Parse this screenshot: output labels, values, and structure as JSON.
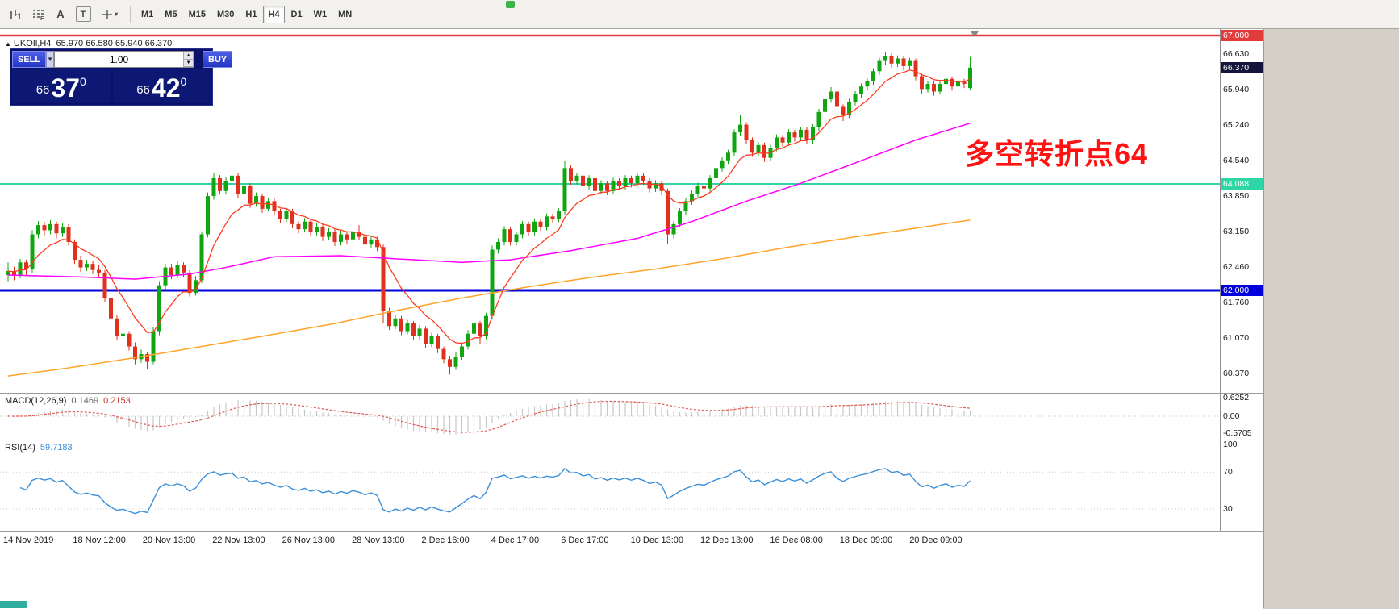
{
  "toolbar": {
    "tool_a": "A",
    "tool_t": "T",
    "timeframes": [
      {
        "label": "M1",
        "active": false
      },
      {
        "label": "M5",
        "active": false
      },
      {
        "label": "M15",
        "active": false
      },
      {
        "label": "M30",
        "active": false
      },
      {
        "label": "H1",
        "active": false
      },
      {
        "label": "H4",
        "active": true
      },
      {
        "label": "D1",
        "active": false
      },
      {
        "label": "W1",
        "active": false
      },
      {
        "label": "MN",
        "active": false
      }
    ]
  },
  "chart": {
    "marker": "▲",
    "symbol": "UKOIl,H4",
    "ohlc": "65.970 66.580 65.940 66.370"
  },
  "annotation": {
    "text": "多空转折点64",
    "color": "#ff1212"
  },
  "order_panel": {
    "sell_label": "SELL",
    "buy_label": "BUY",
    "volume": "1.00",
    "sell_price": {
      "prefix": "66",
      "main": "37",
      "sup": "0"
    },
    "buy_price": {
      "prefix": "66",
      "main": "42",
      "sup": "0"
    }
  },
  "chart_data": {
    "type": "candlestick",
    "symbol": "UKOIl",
    "timeframe": "H4",
    "colors": {
      "up": "#11a611",
      "down": "#e0301e",
      "ma_fast": "#ff3b1f",
      "ma_mid": "#ff00ff",
      "ma_slow": "#ffa428",
      "macd_hist": "#c8c8c8",
      "macd_signal": "#e05a50",
      "rsi": "#3a8fd9"
    },
    "hlines": [
      {
        "price": 67.0,
        "color": "#e23b3b",
        "width": 2.5
      },
      {
        "price": 64.088,
        "color": "#2fd6a5",
        "width": 2
      },
      {
        "price": 62.0,
        "color": "#0000dd",
        "width": 3
      }
    ],
    "ma_fast": {
      "period": 9
    },
    "ma_mid_anchors": [
      [
        0,
        62.3
      ],
      [
        13,
        62.26
      ],
      [
        21,
        62.22
      ],
      [
        30,
        62.32
      ],
      [
        36,
        62.45
      ],
      [
        44,
        62.66
      ],
      [
        55,
        62.68
      ],
      [
        64,
        62.62
      ],
      [
        75,
        62.55
      ],
      [
        83,
        62.6
      ],
      [
        93,
        62.78
      ],
      [
        104,
        63.02
      ],
      [
        113,
        63.35
      ],
      [
        122,
        63.75
      ],
      [
        131,
        64.1
      ],
      [
        140,
        64.5
      ],
      [
        150,
        64.95
      ],
      [
        159,
        65.28
      ]
    ],
    "ma_slow_anchors": [
      [
        0,
        60.32
      ],
      [
        10,
        60.48
      ],
      [
        21,
        60.68
      ],
      [
        32,
        60.9
      ],
      [
        43,
        61.12
      ],
      [
        54,
        61.35
      ],
      [
        64,
        61.6
      ],
      [
        75,
        61.85
      ],
      [
        85,
        62.05
      ],
      [
        96,
        62.25
      ],
      [
        107,
        62.42
      ],
      [
        118,
        62.62
      ],
      [
        129,
        62.85
      ],
      [
        140,
        63.05
      ],
      [
        150,
        63.22
      ],
      [
        159,
        63.38
      ]
    ],
    "candles": [
      [
        62.3,
        62.55,
        62.18,
        62.38
      ],
      [
        62.38,
        62.46,
        62.2,
        62.3
      ],
      [
        62.3,
        62.62,
        62.24,
        62.55
      ],
      [
        62.55,
        62.6,
        62.3,
        62.42
      ],
      [
        62.42,
        63.18,
        62.35,
        63.1
      ],
      [
        63.1,
        63.36,
        63.02,
        63.28
      ],
      [
        63.28,
        63.34,
        63.08,
        63.18
      ],
      [
        63.18,
        63.38,
        63.1,
        63.3
      ],
      [
        63.3,
        63.35,
        63.02,
        63.12
      ],
      [
        63.12,
        63.32,
        63.05,
        63.25
      ],
      [
        63.25,
        63.3,
        62.88,
        62.95
      ],
      [
        62.95,
        63.0,
        62.52,
        62.6
      ],
      [
        62.6,
        62.68,
        62.36,
        62.45
      ],
      [
        62.45,
        62.6,
        62.38,
        62.52
      ],
      [
        62.52,
        62.58,
        62.32,
        62.4
      ],
      [
        62.4,
        62.5,
        62.26,
        62.35
      ],
      [
        62.35,
        62.4,
        61.78,
        61.85
      ],
      [
        61.85,
        61.92,
        61.36,
        61.45
      ],
      [
        61.45,
        61.52,
        61.02,
        61.1
      ],
      [
        61.1,
        61.26,
        61.02,
        61.15
      ],
      [
        61.15,
        61.2,
        60.82,
        60.9
      ],
      [
        60.9,
        60.98,
        60.55,
        60.65
      ],
      [
        60.65,
        60.84,
        60.58,
        60.75
      ],
      [
        60.75,
        60.8,
        60.45,
        60.6
      ],
      [
        60.6,
        61.28,
        60.55,
        61.2
      ],
      [
        61.2,
        62.18,
        61.12,
        62.1
      ],
      [
        62.1,
        62.52,
        62.02,
        62.45
      ],
      [
        62.45,
        62.52,
        62.22,
        62.3
      ],
      [
        62.3,
        62.58,
        62.24,
        62.5
      ],
      [
        62.5,
        62.55,
        62.26,
        62.35
      ],
      [
        62.35,
        62.4,
        61.88,
        61.95
      ],
      [
        61.95,
        62.28,
        61.9,
        62.2
      ],
      [
        62.2,
        63.16,
        62.14,
        63.1
      ],
      [
        63.1,
        63.92,
        63.04,
        63.85
      ],
      [
        63.85,
        64.3,
        63.78,
        64.2
      ],
      [
        64.2,
        64.26,
        63.88,
        63.95
      ],
      [
        63.95,
        64.22,
        63.88,
        64.15
      ],
      [
        64.15,
        64.35,
        64.06,
        64.25
      ],
      [
        64.25,
        64.3,
        63.82,
        63.9
      ],
      [
        63.9,
        64.12,
        63.84,
        64.05
      ],
      [
        64.05,
        64.1,
        63.62,
        63.7
      ],
      [
        63.7,
        63.92,
        63.64,
        63.85
      ],
      [
        63.85,
        63.9,
        63.52,
        63.6
      ],
      [
        63.6,
        63.82,
        63.55,
        63.75
      ],
      [
        63.75,
        63.8,
        63.47,
        63.55
      ],
      [
        63.55,
        63.6,
        63.32,
        63.4
      ],
      [
        63.4,
        63.62,
        63.34,
        63.55
      ],
      [
        63.55,
        63.6,
        63.22,
        63.3
      ],
      [
        63.3,
        63.36,
        63.12,
        63.2
      ],
      [
        63.2,
        63.42,
        63.14,
        63.35
      ],
      [
        63.35,
        63.4,
        63.07,
        63.15
      ],
      [
        63.15,
        63.32,
        63.08,
        63.25
      ],
      [
        63.25,
        63.3,
        62.97,
        63.05
      ],
      [
        63.05,
        63.22,
        62.98,
        63.15
      ],
      [
        63.15,
        63.2,
        62.87,
        62.95
      ],
      [
        62.95,
        63.17,
        62.88,
        63.1
      ],
      [
        63.1,
        63.15,
        62.92,
        63.0
      ],
      [
        63.0,
        63.22,
        62.94,
        63.15
      ],
      [
        63.15,
        63.28,
        62.98,
        63.05
      ],
      [
        63.05,
        63.1,
        62.82,
        62.9
      ],
      [
        62.9,
        63.08,
        62.84,
        63.0
      ],
      [
        63.0,
        63.05,
        62.77,
        62.85
      ],
      [
        62.85,
        62.9,
        61.35,
        61.6
      ],
      [
        61.6,
        61.66,
        61.22,
        61.3
      ],
      [
        61.3,
        61.52,
        61.24,
        61.45
      ],
      [
        61.45,
        61.5,
        61.12,
        61.2
      ],
      [
        61.2,
        61.42,
        61.14,
        61.35
      ],
      [
        61.35,
        61.4,
        61.02,
        61.1
      ],
      [
        61.1,
        61.32,
        61.04,
        61.25
      ],
      [
        61.25,
        61.3,
        60.87,
        60.95
      ],
      [
        60.95,
        61.17,
        60.89,
        61.1
      ],
      [
        61.1,
        61.15,
        60.77,
        60.85
      ],
      [
        60.85,
        60.9,
        60.57,
        60.65
      ],
      [
        60.65,
        60.72,
        60.35,
        60.5
      ],
      [
        60.5,
        60.78,
        60.44,
        60.7
      ],
      [
        60.7,
        60.98,
        60.64,
        60.9
      ],
      [
        60.9,
        61.22,
        60.84,
        61.15
      ],
      [
        61.15,
        61.42,
        61.08,
        61.35
      ],
      [
        61.35,
        61.4,
        60.95,
        61.1
      ],
      [
        61.1,
        61.56,
        61.04,
        61.5
      ],
      [
        61.5,
        62.88,
        61.44,
        62.8
      ],
      [
        62.8,
        63.02,
        62.72,
        62.95
      ],
      [
        62.95,
        63.26,
        62.88,
        63.2
      ],
      [
        63.2,
        63.25,
        62.88,
        62.95
      ],
      [
        62.95,
        63.16,
        62.88,
        63.1
      ],
      [
        63.1,
        63.36,
        63.02,
        63.3
      ],
      [
        63.3,
        63.35,
        63.07,
        63.15
      ],
      [
        63.15,
        63.41,
        63.08,
        63.35
      ],
      [
        63.35,
        63.4,
        63.17,
        63.25
      ],
      [
        63.25,
        63.51,
        63.18,
        63.45
      ],
      [
        63.45,
        63.5,
        63.32,
        63.4
      ],
      [
        63.4,
        63.61,
        63.34,
        63.55
      ],
      [
        63.55,
        64.55,
        63.48,
        64.4
      ],
      [
        64.4,
        64.45,
        64.07,
        64.15
      ],
      [
        64.15,
        64.31,
        64.08,
        64.25
      ],
      [
        64.25,
        64.3,
        63.97,
        64.05
      ],
      [
        64.05,
        64.26,
        63.98,
        64.2
      ],
      [
        64.2,
        64.25,
        63.87,
        63.95
      ],
      [
        63.95,
        64.16,
        63.88,
        64.1
      ],
      [
        64.1,
        64.15,
        63.87,
        63.95
      ],
      [
        63.95,
        64.21,
        63.88,
        64.15
      ],
      [
        64.15,
        64.2,
        63.97,
        64.05
      ],
      [
        64.05,
        64.26,
        63.98,
        64.2
      ],
      [
        64.2,
        64.25,
        64.02,
        64.1
      ],
      [
        64.1,
        64.31,
        64.03,
        64.25
      ],
      [
        64.25,
        64.3,
        64.07,
        64.15
      ],
      [
        64.15,
        64.2,
        63.92,
        64.0
      ],
      [
        64.0,
        64.16,
        63.93,
        64.1
      ],
      [
        64.1,
        64.15,
        63.87,
        63.95
      ],
      [
        63.95,
        64.0,
        62.92,
        63.1
      ],
      [
        63.1,
        63.36,
        63.02,
        63.3
      ],
      [
        63.3,
        63.61,
        63.24,
        63.55
      ],
      [
        63.55,
        63.81,
        63.48,
        63.75
      ],
      [
        63.75,
        63.96,
        63.68,
        63.9
      ],
      [
        63.9,
        64.11,
        63.83,
        64.05
      ],
      [
        64.05,
        64.1,
        63.92,
        64.0
      ],
      [
        64.0,
        64.26,
        63.94,
        64.2
      ],
      [
        64.2,
        64.46,
        64.13,
        64.4
      ],
      [
        64.4,
        64.61,
        64.33,
        64.55
      ],
      [
        64.55,
        64.76,
        64.48,
        64.7
      ],
      [
        64.7,
        65.16,
        64.63,
        65.1
      ],
      [
        65.1,
        65.45,
        65.03,
        65.25
      ],
      [
        65.25,
        65.3,
        64.87,
        64.95
      ],
      [
        64.95,
        65.0,
        64.62,
        64.7
      ],
      [
        64.7,
        64.91,
        64.63,
        64.85
      ],
      [
        64.85,
        64.9,
        64.52,
        64.6
      ],
      [
        64.6,
        64.86,
        64.53,
        64.8
      ],
      [
        64.8,
        65.06,
        64.73,
        65.0
      ],
      [
        65.0,
        65.05,
        64.82,
        64.9
      ],
      [
        64.9,
        65.16,
        64.83,
        65.1
      ],
      [
        65.1,
        65.15,
        64.92,
        65.0
      ],
      [
        65.0,
        65.21,
        64.93,
        65.15
      ],
      [
        65.15,
        65.2,
        64.87,
        64.95
      ],
      [
        64.95,
        65.26,
        64.88,
        65.2
      ],
      [
        65.2,
        65.56,
        65.13,
        65.5
      ],
      [
        65.5,
        65.81,
        65.43,
        65.75
      ],
      [
        65.75,
        65.99,
        65.68,
        65.9
      ],
      [
        65.9,
        65.95,
        65.52,
        65.6
      ],
      [
        65.6,
        65.65,
        65.32,
        65.45
      ],
      [
        65.45,
        65.76,
        65.38,
        65.7
      ],
      [
        65.7,
        65.91,
        65.63,
        65.85
      ],
      [
        65.85,
        66.06,
        65.78,
        66.0
      ],
      [
        66.0,
        66.16,
        65.93,
        66.1
      ],
      [
        66.1,
        66.36,
        66.03,
        66.3
      ],
      [
        66.3,
        66.56,
        66.23,
        66.5
      ],
      [
        66.5,
        66.68,
        66.43,
        66.6
      ],
      [
        66.6,
        66.65,
        66.37,
        66.45
      ],
      [
        66.45,
        66.61,
        66.38,
        66.55
      ],
      [
        66.55,
        66.6,
        66.32,
        66.4
      ],
      [
        66.4,
        66.56,
        66.33,
        66.5
      ],
      [
        66.5,
        66.55,
        66.12,
        66.2
      ],
      [
        66.2,
        66.25,
        65.85,
        65.95
      ],
      [
        65.95,
        66.11,
        65.88,
        66.05
      ],
      [
        66.05,
        66.1,
        65.82,
        65.9
      ],
      [
        65.9,
        66.11,
        65.84,
        66.05
      ],
      [
        66.05,
        66.21,
        65.98,
        66.15
      ],
      [
        66.15,
        66.2,
        65.92,
        66.0
      ],
      [
        66.0,
        66.16,
        65.93,
        66.1
      ],
      [
        66.1,
        66.15,
        65.97,
        66.05
      ],
      [
        65.97,
        66.58,
        65.94,
        66.37
      ]
    ],
    "macd": {
      "label": "MACD(12,26,9)",
      "value_main": "0.1469",
      "value_signal": "0.2153",
      "axis_ticks": [
        {
          "label": "0.6252",
          "v": 0.6252
        },
        {
          "label": "0.00",
          "v": 0
        },
        {
          "label": "-0.5705",
          "v": -0.5705
        }
      ]
    },
    "rsi": {
      "label": "RSI(14)",
      "value": "59.7183",
      "levels": [
        70,
        30
      ],
      "axis_ticks": [
        {
          "label": "100",
          "v": 100
        },
        {
          "label": "70",
          "v": 70
        },
        {
          "label": "30",
          "v": 30
        }
      ]
    },
    "price_axis_ticks": [
      {
        "label": "66.630",
        "price": 66.63
      },
      {
        "label": "65.940",
        "price": 65.94
      },
      {
        "label": "65.240",
        "price": 65.24
      },
      {
        "label": "64.540",
        "price": 64.54
      },
      {
        "label": "63.850",
        "price": 63.85
      },
      {
        "label": "63.150",
        "price": 63.15
      },
      {
        "label": "62.460",
        "price": 62.46
      },
      {
        "label": "61.760",
        "price": 61.76
      },
      {
        "label": "61.070",
        "price": 61.07
      },
      {
        "label": "60.370",
        "price": 60.37
      }
    ],
    "price_badges": [
      {
        "label": "67.000",
        "price": 67.0,
        "bg": "#e23b3b"
      },
      {
        "label": "66.370",
        "price": 66.37,
        "bg": "#14143c"
      },
      {
        "label": "64.088",
        "price": 64.088,
        "bg": "#2fd6a5"
      },
      {
        "label": "62.000",
        "price": 62.0,
        "bg": "#0000dd"
      }
    ],
    "time_labels": [
      "14 Nov 2019",
      "18 Nov 12:00",
      "20 Nov 13:00",
      "22 Nov 13:00",
      "26 Nov 13:00",
      "28 Nov 13:00",
      "2 Dec 16:00",
      "4 Dec 17:00",
      "6 Dec 17:00",
      "10 Dec 13:00",
      "12 Dec 13:00",
      "16 Dec 08:00",
      "18 Dec 09:00",
      "20 Dec 09:00"
    ]
  }
}
